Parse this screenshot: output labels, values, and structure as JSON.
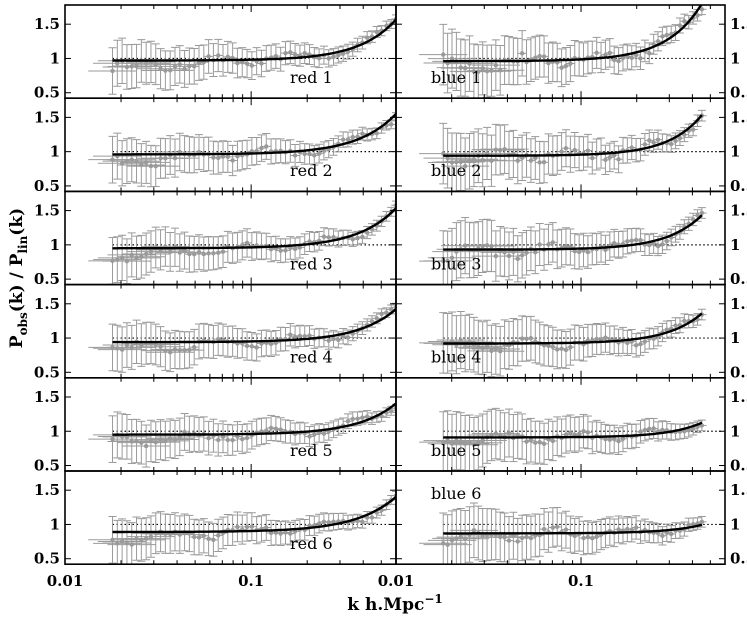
{
  "chart_data": {
    "type": "scatter",
    "description_note": "12 panels of errorbar points with model curves; ratio of observed to linear power spectrum",
    "xlabel_main": "k h.Mpc",
    "xlabel_sup": "−1",
    "ylabel": {
      "P1": "P",
      "P1sub": "obs",
      "mid": "(k) / P",
      "P2sub": "lin",
      "end": "(k)"
    },
    "xscale": "log",
    "xlim": [
      0.01,
      0.6
    ],
    "ylim": [
      0.42,
      1.78
    ],
    "x_ticks": [
      0.01,
      0.1
    ],
    "x_tick_labels": [
      "0.01",
      "0.1",
      "0.01",
      "0.1"
    ],
    "y_ticks": [
      0.5,
      1,
      1.5
    ],
    "y_tick_labels": [
      "0.5",
      "1",
      "1.5"
    ],
    "reference_line": 1,
    "panels": [
      {
        "label": "red 1",
        "col": 0,
        "row": 0,
        "model": {
          "a": 0.97,
          "b": 1.9,
          "p": 2.2
        },
        "scatter": 0.12,
        "xmax": 0.6
      },
      {
        "label": "blue 1",
        "col": 1,
        "row": 0,
        "model": {
          "a": 0.96,
          "b": 5.5,
          "p": 2.3
        },
        "scatter": 0.22,
        "xmax": 0.45
      },
      {
        "label": "red 2",
        "col": 0,
        "row": 1,
        "model": {
          "a": 0.96,
          "b": 1.8,
          "p": 2.1
        },
        "scatter": 0.12,
        "xmax": 0.6
      },
      {
        "label": "blue 2",
        "col": 1,
        "row": 1,
        "model": {
          "a": 0.94,
          "b": 4.3,
          "p": 2.4
        },
        "scatter": 0.2,
        "xmax": 0.45
      },
      {
        "label": "red 3",
        "col": 0,
        "row": 2,
        "model": {
          "a": 0.95,
          "b": 1.8,
          "p": 2.1
        },
        "scatter": 0.1,
        "xmax": 0.6
      },
      {
        "label": "blue 3",
        "col": 1,
        "row": 2,
        "model": {
          "a": 0.93,
          "b": 3.4,
          "p": 2.3
        },
        "scatter": 0.15,
        "xmax": 0.45
      },
      {
        "label": "red 4",
        "col": 0,
        "row": 3,
        "model": {
          "a": 0.94,
          "b": 1.5,
          "p": 2.1
        },
        "scatter": 0.1,
        "xmax": 0.6
      },
      {
        "label": "blue 4",
        "col": 1,
        "row": 3,
        "model": {
          "a": 0.92,
          "b": 3.0,
          "p": 2.3
        },
        "scatter": 0.12,
        "xmax": 0.45
      },
      {
        "label": "red 5",
        "col": 0,
        "row": 4,
        "model": {
          "a": 0.95,
          "b": 1.4,
          "p": 2.1
        },
        "scatter": 0.1,
        "xmax": 0.6
      },
      {
        "label": "blue 5",
        "col": 1,
        "row": 4,
        "model": {
          "a": 0.91,
          "b": 1.6,
          "p": 2.4
        },
        "scatter": 0.1,
        "xmax": 0.45
      },
      {
        "label": "red 6",
        "col": 0,
        "row": 5,
        "model": {
          "a": 0.89,
          "b": 1.6,
          "p": 2.0
        },
        "scatter": 0.1,
        "xmax": 0.6
      },
      {
        "label": "blue 6",
        "col": 1,
        "row": 5,
        "model": {
          "a": 0.87,
          "b": 0.9,
          "p": 2.3
        },
        "scatter": 0.12,
        "xmax": 0.45
      }
    ],
    "colors": {
      "model": "#000000",
      "points": "#9a9a9a",
      "reference": "#000000",
      "frame": "#000000"
    }
  }
}
